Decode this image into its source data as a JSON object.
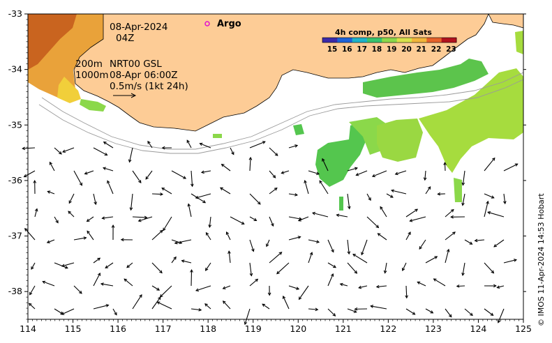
{
  "map": {
    "date_line": "08-Apr-2024",
    "hour_line": "04Z",
    "depth_200": "200m",
    "depth_1000": "1000m",
    "current_label_1": "NRT00 GSL",
    "current_label_2": "08-Apr 06:00Z",
    "scale_label": "0.5m/s (1kt 24h)",
    "argo_label": "Argo",
    "colors": {
      "land": "#fdcc96",
      "argo": "#e00fd0",
      "water": "#ffffff"
    }
  },
  "sst_colorbar": {
    "title": "4h comp, p50, All Sats",
    "ticks": [
      "15",
      "16",
      "17",
      "18",
      "19",
      "20",
      "21",
      "22",
      "23"
    ],
    "colors": [
      "#3b2aa8",
      "#1e63d9",
      "#1fb3c9",
      "#39c46e",
      "#8bd84a",
      "#d7e24a",
      "#f2b53a",
      "#e6622a",
      "#b2121e"
    ]
  },
  "axes": {
    "x_ticks": [
      "114",
      "115",
      "116",
      "117",
      "118",
      "119",
      "120",
      "121",
      "122",
      "123",
      "124",
      "125"
    ],
    "y_ticks": [
      "-33",
      "-34",
      "-35",
      "-36",
      "-37",
      "-38"
    ],
    "x_range": [
      114,
      125
    ],
    "y_range": [
      -38.5,
      -33
    ]
  },
  "footer": {
    "credit": "© IMOS 11-Apr-2024 14:53 Hobart"
  }
}
